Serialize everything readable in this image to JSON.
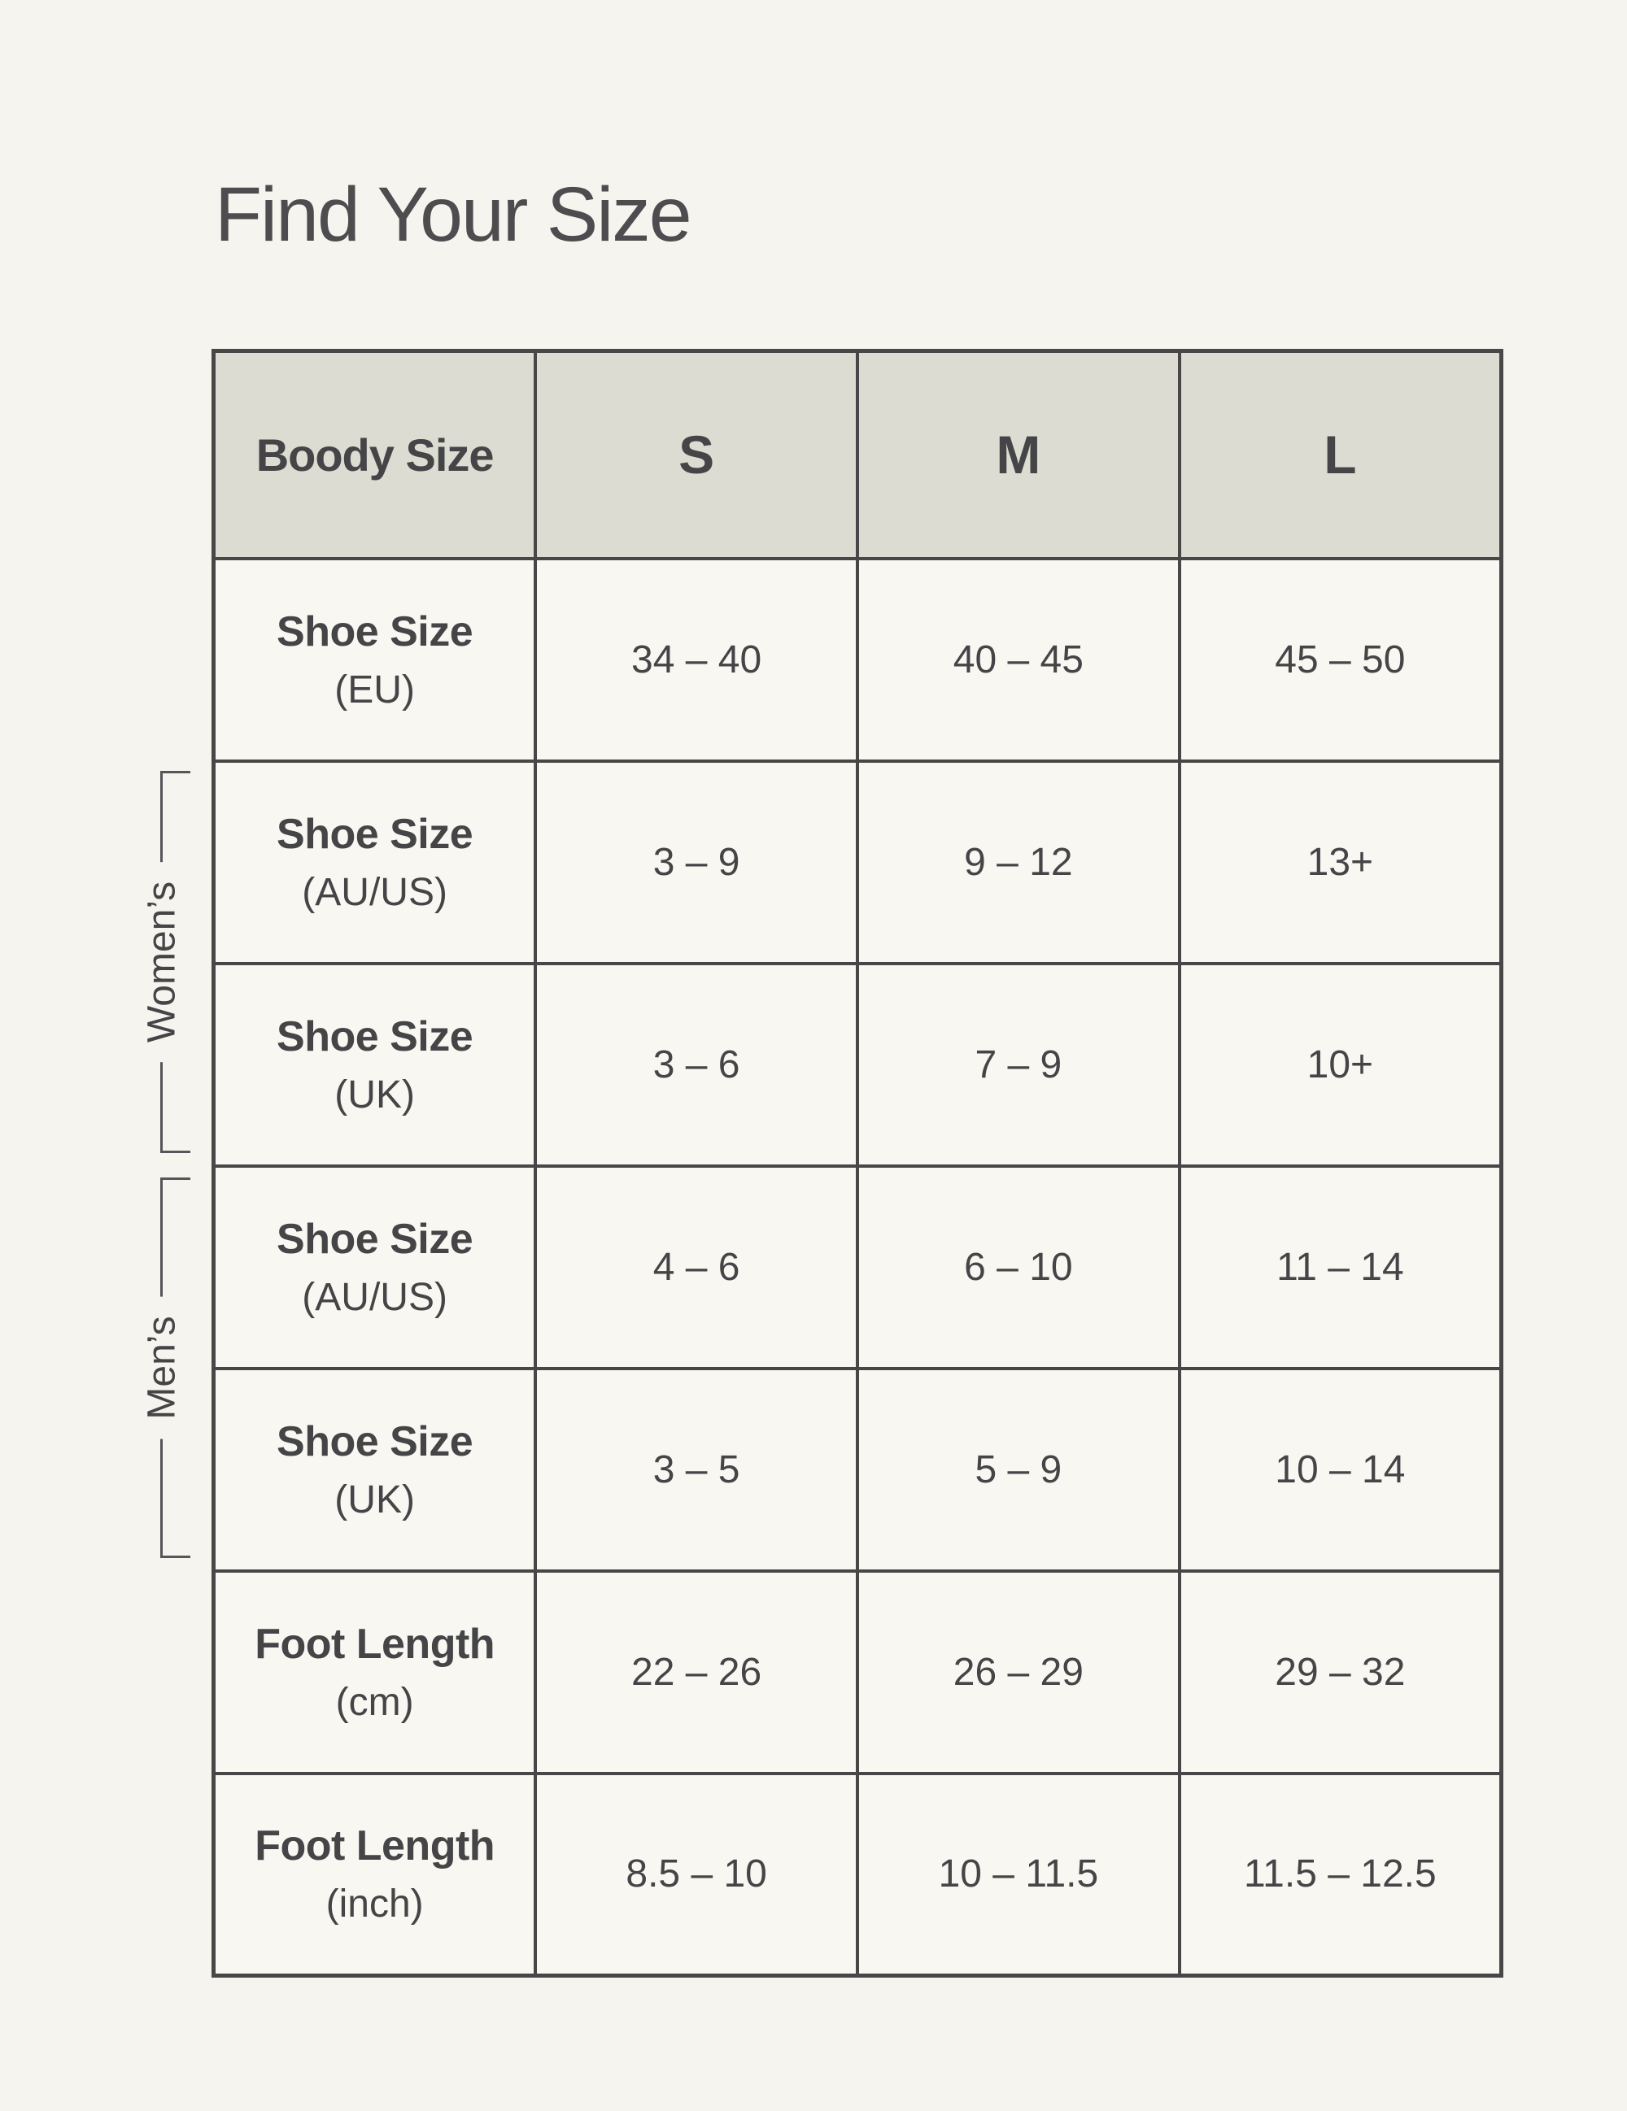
{
  "page": {
    "title": "Find Your Size"
  },
  "colors": {
    "bg": "#f5f4ee",
    "cell": "#f8f7f2",
    "header": "#dcdcd3",
    "border": "#474747",
    "text": "#454547",
    "title": "#4d4d4f",
    "bracket": "#55555a"
  },
  "groups": {
    "womens": "Women’s",
    "mens": "Men’s"
  },
  "table": {
    "header": {
      "label": "Boody Size",
      "sizes": [
        "S",
        "M",
        "L"
      ]
    },
    "rows": [
      {
        "label": "Shoe Size",
        "unit": "(EU)",
        "group": "",
        "values": [
          "34 – 40",
          "40 – 45",
          "45 – 50"
        ]
      },
      {
        "label": "Shoe Size",
        "unit": "(AU/US)",
        "group": "womens",
        "values": [
          "3 – 9",
          "9 – 12",
          "13+"
        ]
      },
      {
        "label": "Shoe Size",
        "unit": "(UK)",
        "group": "womens",
        "values": [
          "3 – 6",
          "7 – 9",
          "10+"
        ]
      },
      {
        "label": "Shoe Size",
        "unit": "(AU/US)",
        "group": "mens",
        "values": [
          "4 – 6",
          "6 – 10",
          "11 – 14"
        ]
      },
      {
        "label": "Shoe Size",
        "unit": "(UK)",
        "group": "mens",
        "values": [
          "3 – 5",
          "5 – 9",
          "10 – 14"
        ]
      },
      {
        "label": "Foot Length",
        "unit": "(cm)",
        "group": "",
        "values": [
          "22 – 26",
          "26 – 29",
          "29 – 32"
        ]
      },
      {
        "label": "Foot Length",
        "unit": "(inch)",
        "group": "",
        "values": [
          "8.5 – 10",
          "10 – 11.5",
          "11.5 – 12.5"
        ]
      }
    ]
  }
}
